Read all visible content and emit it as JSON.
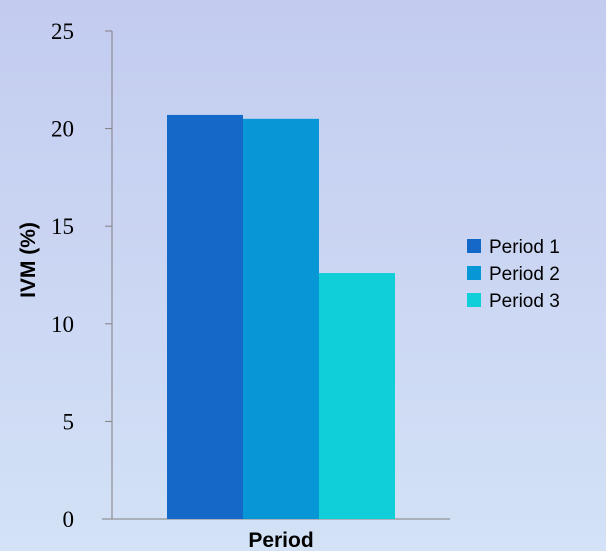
{
  "chart_data": {
    "type": "bar",
    "title": "",
    "xlabel": "Period",
    "ylabel": "IVM (%)",
    "ylim": [
      0,
      25
    ],
    "yticks": [
      0,
      5,
      10,
      15,
      20,
      25
    ],
    "grid": false,
    "legend_position": "right",
    "series": [
      {
        "name": "Period 1",
        "value": 20.7,
        "color": "#1468c8"
      },
      {
        "name": "Period 2",
        "value": 20.5,
        "color": "#0897d6"
      },
      {
        "name": "Period 3",
        "value": 12.6,
        "color": "#10cfd8"
      }
    ]
  }
}
